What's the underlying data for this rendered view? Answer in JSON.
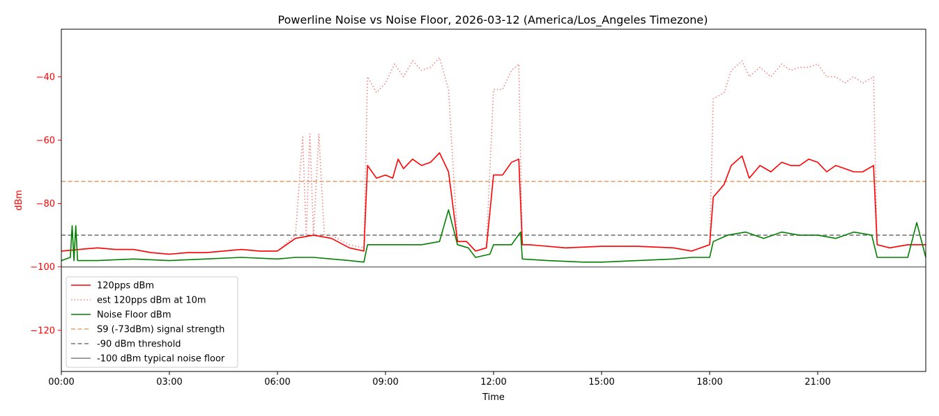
{
  "chart_data": {
    "type": "line",
    "title": "Powerline Noise vs Noise Floor, 2026-03-12 (America/Los_Angeles Timezone)",
    "xlabel": "Time",
    "ylabel": "dBm",
    "xlim_hours": [
      0,
      24
    ],
    "ylim": [
      -133,
      -25
    ],
    "x_ticks": [
      {
        "hour": 0,
        "label": "00:00"
      },
      {
        "hour": 3,
        "label": "03:00"
      },
      {
        "hour": 6,
        "label": "06:00"
      },
      {
        "hour": 9,
        "label": "09:00"
      },
      {
        "hour": 12,
        "label": "12:00"
      },
      {
        "hour": 15,
        "label": "15:00"
      },
      {
        "hour": 18,
        "label": "18:00"
      },
      {
        "hour": 21,
        "label": "21:00"
      }
    ],
    "y_ticks": [
      {
        "value": -40,
        "label": "−40"
      },
      {
        "value": -60,
        "label": "−60"
      },
      {
        "value": -80,
        "label": "−80"
      },
      {
        "value": -100,
        "label": "−100"
      },
      {
        "value": -120,
        "label": "−120"
      }
    ],
    "legend_position": "lower-left",
    "grid": false,
    "ylabel_color": "#ff0000",
    "series": [
      {
        "name": "120pps dBm",
        "color": "#ff0000",
        "style": "solid",
        "points": [
          [
            0.0,
            -95
          ],
          [
            0.5,
            -94.5
          ],
          [
            1.0,
            -94
          ],
          [
            1.5,
            -94.5
          ],
          [
            2.0,
            -94.5
          ],
          [
            2.5,
            -95.5
          ],
          [
            3.0,
            -96
          ],
          [
            3.5,
            -95.5
          ],
          [
            4.0,
            -95.5
          ],
          [
            4.5,
            -95
          ],
          [
            5.0,
            -94.5
          ],
          [
            5.5,
            -95
          ],
          [
            6.0,
            -95
          ],
          [
            6.5,
            -91
          ],
          [
            7.0,
            -90
          ],
          [
            7.5,
            -91
          ],
          [
            8.0,
            -94
          ],
          [
            8.4,
            -95
          ],
          [
            8.5,
            -68
          ],
          [
            8.75,
            -72
          ],
          [
            9.0,
            -71
          ],
          [
            9.2,
            -72
          ],
          [
            9.35,
            -66
          ],
          [
            9.5,
            -69
          ],
          [
            9.75,
            -66
          ],
          [
            10.0,
            -68
          ],
          [
            10.25,
            -67
          ],
          [
            10.5,
            -64
          ],
          [
            10.75,
            -70
          ],
          [
            11.0,
            -92
          ],
          [
            11.25,
            -92
          ],
          [
            11.5,
            -95
          ],
          [
            11.8,
            -94
          ],
          [
            12.0,
            -71
          ],
          [
            12.25,
            -71
          ],
          [
            12.5,
            -67
          ],
          [
            12.7,
            -66
          ],
          [
            12.8,
            -93
          ],
          [
            13.0,
            -93
          ],
          [
            14.0,
            -94
          ],
          [
            15.0,
            -93.5
          ],
          [
            16.0,
            -93.5
          ],
          [
            17.0,
            -94
          ],
          [
            17.5,
            -95
          ],
          [
            18.0,
            -93
          ],
          [
            18.1,
            -78
          ],
          [
            18.4,
            -74
          ],
          [
            18.6,
            -68
          ],
          [
            18.9,
            -65
          ],
          [
            19.1,
            -72
          ],
          [
            19.4,
            -68
          ],
          [
            19.7,
            -70
          ],
          [
            20.0,
            -67
          ],
          [
            20.25,
            -68
          ],
          [
            20.5,
            -68
          ],
          [
            20.75,
            -66
          ],
          [
            21.0,
            -67
          ],
          [
            21.25,
            -70
          ],
          [
            21.5,
            -68
          ],
          [
            21.75,
            -69
          ],
          [
            22.0,
            -70
          ],
          [
            22.25,
            -70
          ],
          [
            22.55,
            -68
          ],
          [
            22.65,
            -93
          ],
          [
            23.0,
            -94
          ],
          [
            23.5,
            -93
          ],
          [
            24.0,
            -93
          ]
        ]
      },
      {
        "name": "est 120pps dBm at 10m",
        "color": "#f08080",
        "style": "dotted",
        "points": [
          [
            0.0,
            -95
          ],
          [
            0.5,
            -94.5
          ],
          [
            1.0,
            -94
          ],
          [
            1.5,
            -94.5
          ],
          [
            2.0,
            -94.5
          ],
          [
            2.5,
            -95.5
          ],
          [
            3.0,
            -96
          ],
          [
            3.5,
            -95.5
          ],
          [
            4.0,
            -95.5
          ],
          [
            4.5,
            -95
          ],
          [
            5.0,
            -94.5
          ],
          [
            5.5,
            -95
          ],
          [
            6.0,
            -95
          ],
          [
            6.5,
            -90
          ],
          [
            6.7,
            -59
          ],
          [
            6.8,
            -90
          ],
          [
            6.9,
            -58
          ],
          [
            7.0,
            -90
          ],
          [
            7.15,
            -58
          ],
          [
            7.3,
            -90
          ],
          [
            7.5,
            -90
          ],
          [
            8.0,
            -93
          ],
          [
            8.4,
            -94
          ],
          [
            8.5,
            -40
          ],
          [
            8.75,
            -45
          ],
          [
            9.0,
            -42
          ],
          [
            9.25,
            -36
          ],
          [
            9.5,
            -40
          ],
          [
            9.75,
            -35
          ],
          [
            10.0,
            -38
          ],
          [
            10.25,
            -37
          ],
          [
            10.5,
            -34
          ],
          [
            10.75,
            -44
          ],
          [
            11.0,
            -92
          ],
          [
            11.25,
            -92
          ],
          [
            11.5,
            -95
          ],
          [
            11.8,
            -94
          ],
          [
            12.0,
            -44
          ],
          [
            12.25,
            -44
          ],
          [
            12.5,
            -38
          ],
          [
            12.7,
            -36
          ],
          [
            12.8,
            -93
          ],
          [
            13.0,
            -93
          ],
          [
            14.0,
            -94
          ],
          [
            15.0,
            -93.5
          ],
          [
            16.0,
            -93.5
          ],
          [
            17.0,
            -94
          ],
          [
            17.5,
            -95
          ],
          [
            18.0,
            -93
          ],
          [
            18.1,
            -47
          ],
          [
            18.4,
            -45
          ],
          [
            18.6,
            -38
          ],
          [
            18.9,
            -35
          ],
          [
            19.1,
            -40
          ],
          [
            19.4,
            -37
          ],
          [
            19.7,
            -40
          ],
          [
            20.0,
            -36
          ],
          [
            20.25,
            -38
          ],
          [
            20.5,
            -37
          ],
          [
            20.75,
            -37
          ],
          [
            21.0,
            -36
          ],
          [
            21.25,
            -40
          ],
          [
            21.5,
            -40
          ],
          [
            21.75,
            -42
          ],
          [
            22.0,
            -40
          ],
          [
            22.25,
            -42
          ],
          [
            22.55,
            -40
          ],
          [
            22.65,
            -93
          ],
          [
            23.0,
            -94
          ],
          [
            23.5,
            -93
          ],
          [
            24.0,
            -93
          ]
        ]
      },
      {
        "name": "Noise Floor dBm",
        "color": "#008000",
        "style": "solid",
        "points": [
          [
            0.0,
            -98
          ],
          [
            0.25,
            -97
          ],
          [
            0.3,
            -87
          ],
          [
            0.35,
            -98
          ],
          [
            0.4,
            -87
          ],
          [
            0.45,
            -98
          ],
          [
            1.0,
            -98
          ],
          [
            2.0,
            -97.5
          ],
          [
            3.0,
            -98
          ],
          [
            4.0,
            -97.5
          ],
          [
            5.0,
            -97
          ],
          [
            6.0,
            -97.5
          ],
          [
            6.5,
            -97
          ],
          [
            7.0,
            -97
          ],
          [
            7.5,
            -97.5
          ],
          [
            8.0,
            -98
          ],
          [
            8.4,
            -98.5
          ],
          [
            8.5,
            -93
          ],
          [
            9.0,
            -93
          ],
          [
            9.5,
            -93
          ],
          [
            10.0,
            -93
          ],
          [
            10.5,
            -92
          ],
          [
            10.75,
            -82
          ],
          [
            11.0,
            -93
          ],
          [
            11.3,
            -94
          ],
          [
            11.5,
            -97
          ],
          [
            11.9,
            -96
          ],
          [
            12.0,
            -93
          ],
          [
            12.5,
            -93
          ],
          [
            12.75,
            -89
          ],
          [
            12.8,
            -97.5
          ],
          [
            13.5,
            -98
          ],
          [
            14.5,
            -98.5
          ],
          [
            15.0,
            -98.5
          ],
          [
            16.0,
            -98
          ],
          [
            17.0,
            -97.5
          ],
          [
            17.5,
            -97
          ],
          [
            18.0,
            -97
          ],
          [
            18.1,
            -92
          ],
          [
            18.5,
            -90
          ],
          [
            19.0,
            -89
          ],
          [
            19.5,
            -91
          ],
          [
            20.0,
            -89
          ],
          [
            20.5,
            -90
          ],
          [
            21.0,
            -90
          ],
          [
            21.5,
            -91
          ],
          [
            22.0,
            -89
          ],
          [
            22.5,
            -90
          ],
          [
            22.65,
            -97
          ],
          [
            23.0,
            -97
          ],
          [
            23.5,
            -97
          ],
          [
            23.75,
            -86
          ],
          [
            24.0,
            -97
          ]
        ]
      },
      {
        "name": "S9 (-73dBm) signal strength",
        "color": "#dfa070",
        "style": "dashed",
        "points": [
          [
            0,
            -73
          ],
          [
            24,
            -73
          ]
        ]
      },
      {
        "name": "-90 dBm threshold",
        "color": "#777777",
        "style": "dashed",
        "points": [
          [
            0,
            -90
          ],
          [
            24,
            -90
          ]
        ]
      },
      {
        "name": "-100 dBm typical noise floor",
        "color": "#808080",
        "style": "solid",
        "points": [
          [
            0,
            -100
          ],
          [
            24,
            -100
          ]
        ]
      }
    ]
  }
}
